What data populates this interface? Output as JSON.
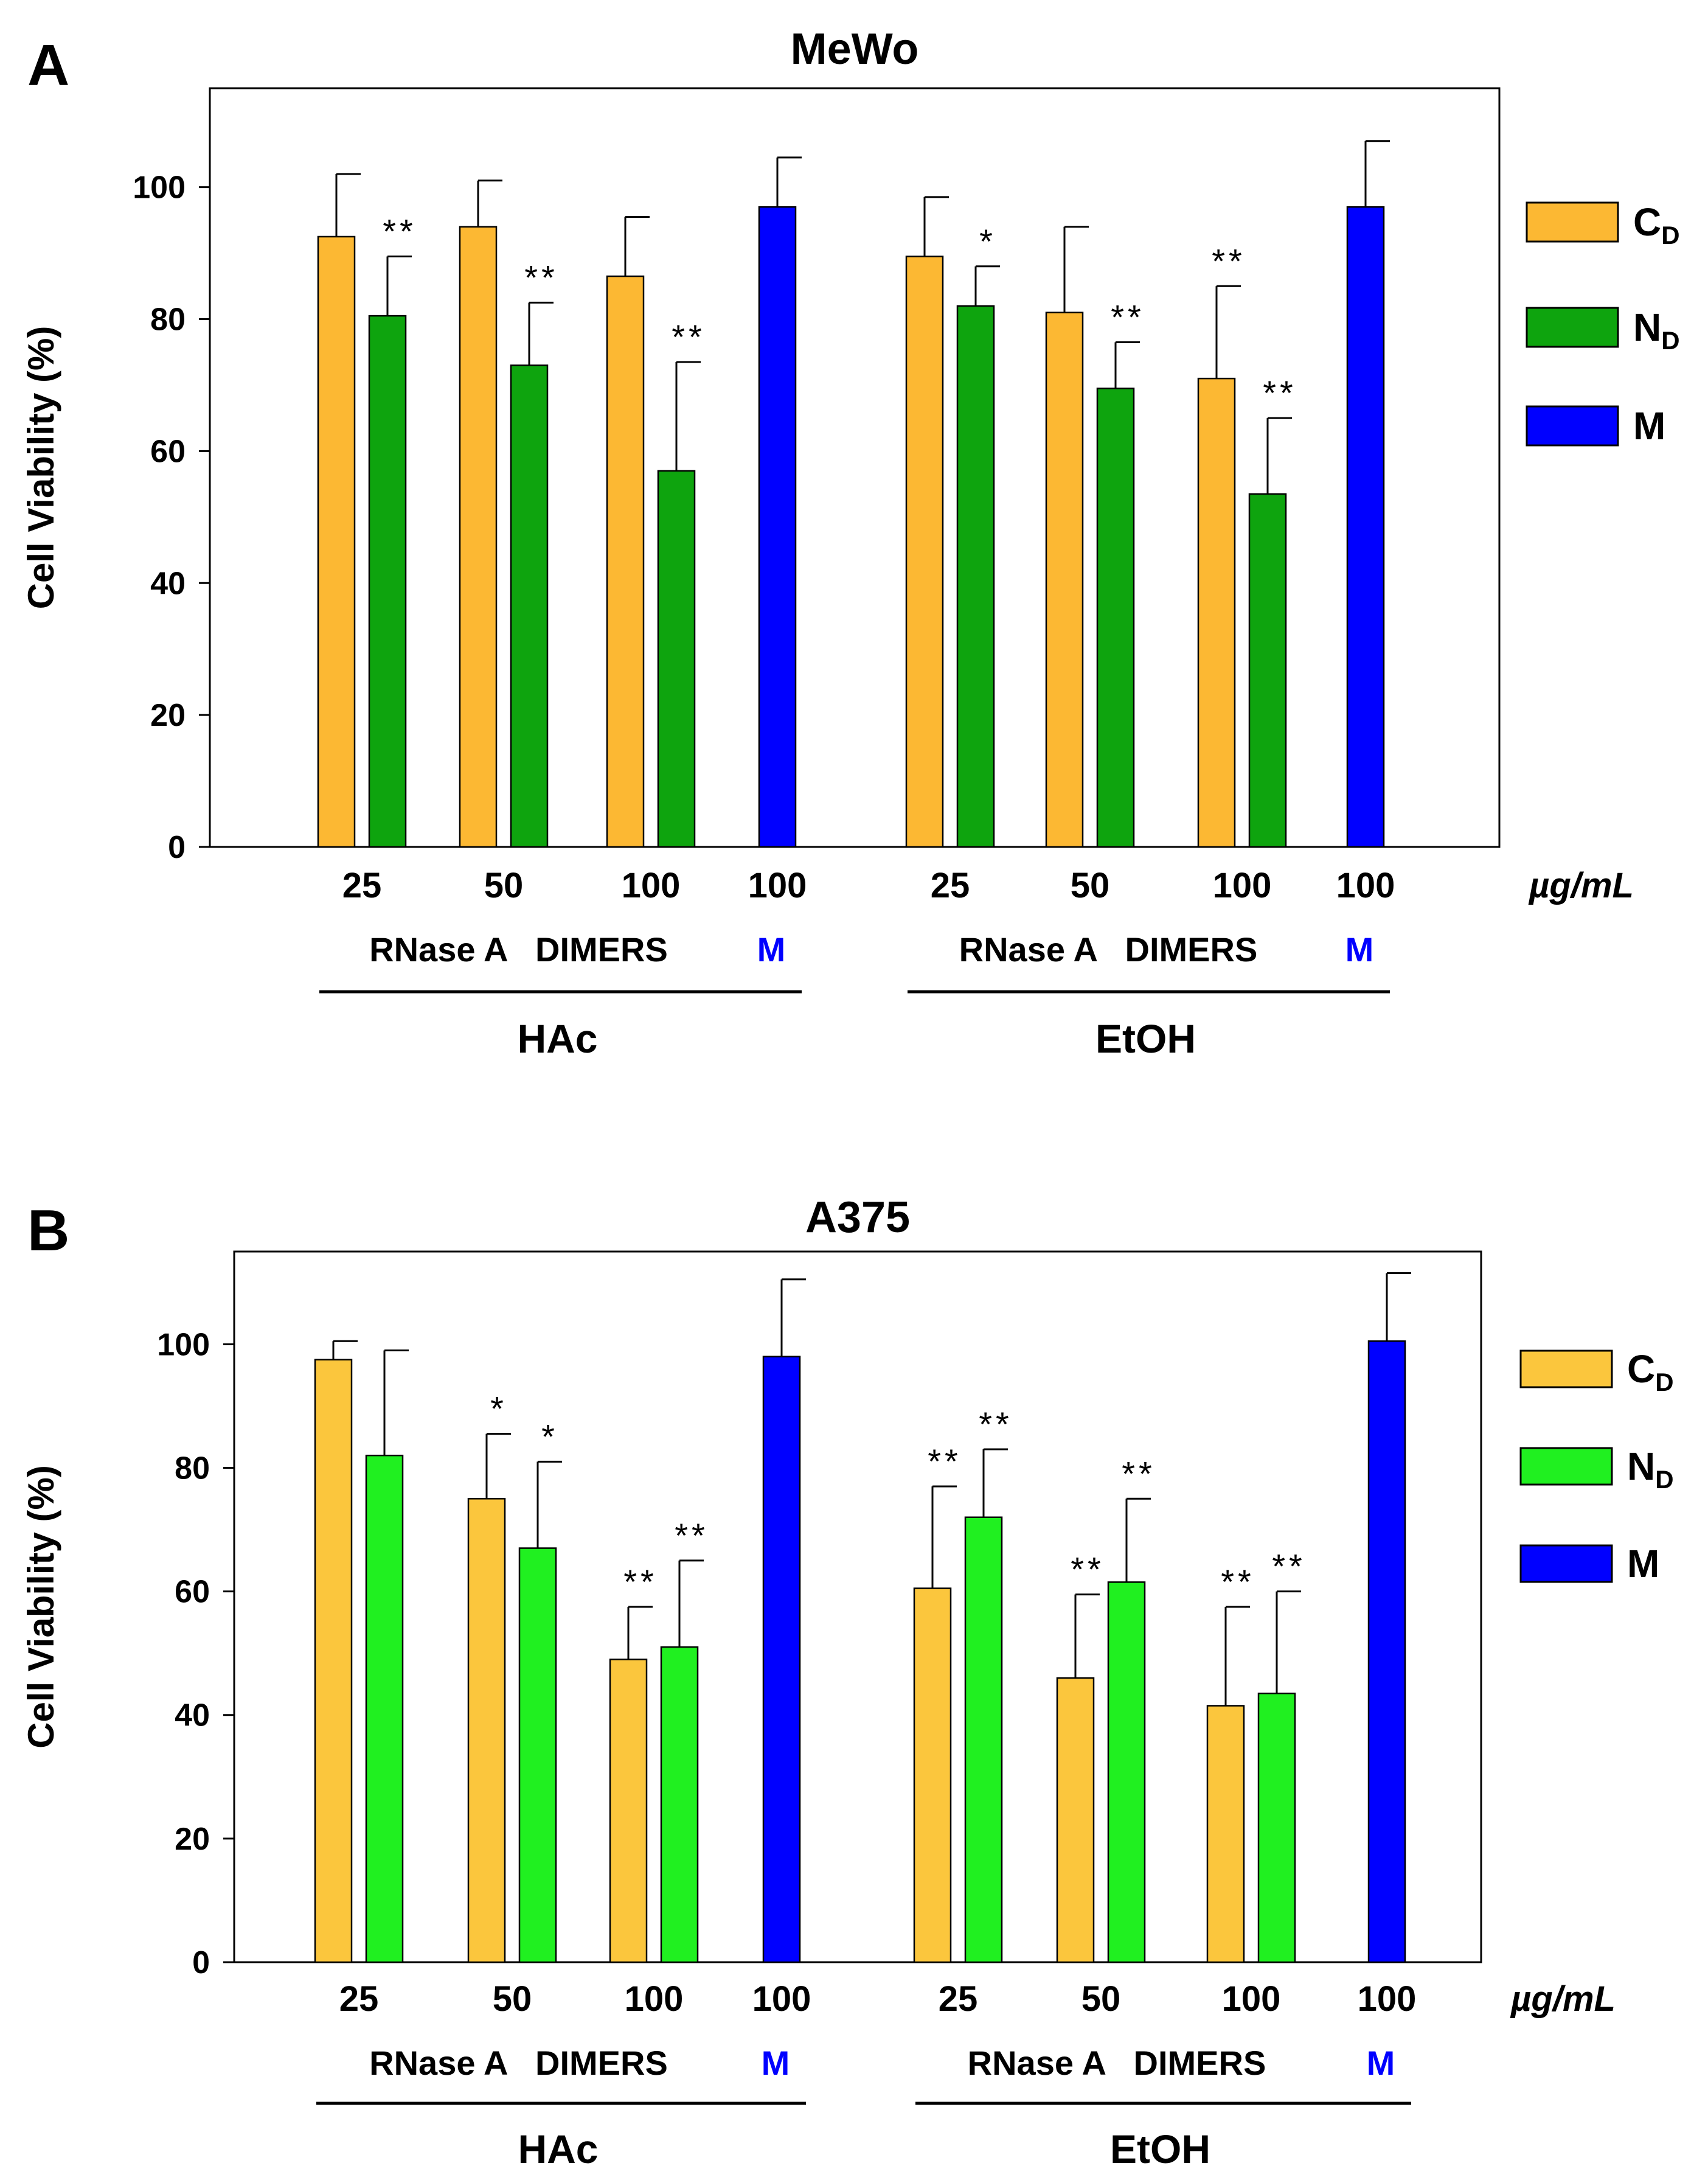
{
  "unit_label": "µg/mL",
  "legend_colors": {
    "A": {
      "CD": "#FCB833",
      "ND": "#0EA40E",
      "M": "#0000FF"
    },
    "B": {
      "CD": "#FBC63D",
      "ND": "#20F020",
      "M": "#0000FF"
    }
  },
  "chart_data": [
    {
      "panel": "A",
      "title": "MeWo",
      "type": "bar",
      "ylabel": "Cell Viability  (%)",
      "ylim": [
        0,
        115
      ],
      "yticks": [
        0,
        20,
        40,
        60,
        80,
        100
      ],
      "grid": false,
      "legend_position": "right",
      "legend": [
        {
          "key": "CD",
          "main": "C",
          "sub": "D"
        },
        {
          "key": "ND",
          "main": "N",
          "sub": "D"
        },
        {
          "key": "M",
          "main": "M",
          "sub": ""
        }
      ],
      "groups": [
        {
          "label": "HAc",
          "sub": [
            "RNase A   DIMERS",
            "M"
          ],
          "clusters": [
            {
              "dose": "25",
              "bars": [
                {
                  "series": "CD",
                  "value": 92.5,
                  "error": 9.5,
                  "sig": ""
                },
                {
                  "series": "ND",
                  "value": 80.5,
                  "error": 9,
                  "sig": "**"
                }
              ]
            },
            {
              "dose": "50",
              "bars": [
                {
                  "series": "CD",
                  "value": 94,
                  "error": 7,
                  "sig": ""
                },
                {
                  "series": "ND",
                  "value": 73,
                  "error": 9.5,
                  "sig": "**"
                }
              ]
            },
            {
              "dose": "100",
              "bars": [
                {
                  "series": "CD",
                  "value": 86.5,
                  "error": 9,
                  "sig": ""
                },
                {
                  "series": "ND",
                  "value": 57,
                  "error": 16.5,
                  "sig": "**"
                }
              ]
            },
            {
              "dose": "100",
              "bars": [
                {
                  "series": "M",
                  "value": 97,
                  "error": 7.5,
                  "sig": ""
                }
              ]
            }
          ]
        },
        {
          "label": "EtOH",
          "sub": [
            "RNase A   DIMERS",
            "M"
          ],
          "clusters": [
            {
              "dose": "25",
              "bars": [
                {
                  "series": "CD",
                  "value": 89.5,
                  "error": 9,
                  "sig": ""
                },
                {
                  "series": "ND",
                  "value": 82,
                  "error": 6,
                  "sig": "*"
                }
              ]
            },
            {
              "dose": "50",
              "bars": [
                {
                  "series": "CD",
                  "value": 81,
                  "error": 13,
                  "sig": ""
                },
                {
                  "series": "ND",
                  "value": 69.5,
                  "error": 7,
                  "sig": "**"
                }
              ]
            },
            {
              "dose": "100",
              "bars": [
                {
                  "series": "CD",
                  "value": 71,
                  "error": 14,
                  "sig": "**"
                },
                {
                  "series": "ND",
                  "value": 53.5,
                  "error": 11.5,
                  "sig": "**"
                }
              ]
            },
            {
              "dose": "100",
              "bars": [
                {
                  "series": "M",
                  "value": 97,
                  "error": 10,
                  "sig": ""
                }
              ]
            }
          ]
        }
      ]
    },
    {
      "panel": "B",
      "title": "A375",
      "type": "bar",
      "ylabel": "Cell Viability  (%)",
      "ylim": [
        0,
        115
      ],
      "yticks": [
        0,
        20,
        40,
        60,
        80,
        100
      ],
      "grid": false,
      "legend_position": "right",
      "legend": [
        {
          "key": "CD",
          "main": "C",
          "sub": "D"
        },
        {
          "key": "ND",
          "main": "N",
          "sub": "D"
        },
        {
          "key": "M",
          "main": "M",
          "sub": ""
        }
      ],
      "groups": [
        {
          "label": "HAc",
          "sub": [
            "RNase A   DIMERS",
            "M"
          ],
          "clusters": [
            {
              "dose": "25",
              "bars": [
                {
                  "series": "CD",
                  "value": 97.5,
                  "error": 3,
                  "sig": ""
                },
                {
                  "series": "ND",
                  "value": 82,
                  "error": 17,
                  "sig": ""
                }
              ]
            },
            {
              "dose": "50",
              "bars": [
                {
                  "series": "CD",
                  "value": 75,
                  "error": 10.5,
                  "sig": "*"
                },
                {
                  "series": "ND",
                  "value": 67,
                  "error": 14,
                  "sig": "*"
                }
              ]
            },
            {
              "dose": "100",
              "bars": [
                {
                  "series": "CD",
                  "value": 49,
                  "error": 8.5,
                  "sig": "**"
                },
                {
                  "series": "ND",
                  "value": 51,
                  "error": 14,
                  "sig": "**"
                }
              ]
            },
            {
              "dose": "100",
              "bars": [
                {
                  "series": "M",
                  "value": 98,
                  "error": 12.5,
                  "sig": ""
                }
              ]
            }
          ]
        },
        {
          "label": "EtOH",
          "sub": [
            "RNase A   DIMERS",
            "M"
          ],
          "clusters": [
            {
              "dose": "25",
              "bars": [
                {
                  "series": "CD",
                  "value": 60.5,
                  "error": 16.5,
                  "sig": "**"
                },
                {
                  "series": "ND",
                  "value": 72,
                  "error": 11,
                  "sig": "**"
                }
              ]
            },
            {
              "dose": "50",
              "bars": [
                {
                  "series": "CD",
                  "value": 46,
                  "error": 13.5,
                  "sig": "**"
                },
                {
                  "series": "ND",
                  "value": 61.5,
                  "error": 13.5,
                  "sig": "**"
                }
              ]
            },
            {
              "dose": "100",
              "bars": [
                {
                  "series": "CD",
                  "value": 41.5,
                  "error": 16,
                  "sig": "**"
                },
                {
                  "series": "ND",
                  "value": 43.5,
                  "error": 16.5,
                  "sig": "**"
                }
              ]
            },
            {
              "dose": "100",
              "bars": [
                {
                  "series": "M",
                  "value": 100.5,
                  "error": 11,
                  "sig": ""
                }
              ]
            }
          ]
        }
      ]
    }
  ]
}
